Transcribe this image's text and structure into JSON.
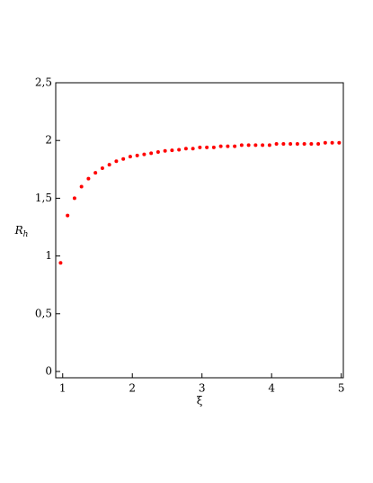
{
  "chart_data": {
    "type": "scatter",
    "xlabel": "ξ",
    "ylabel": {
      "base": "R",
      "sub": "h"
    },
    "color": "#ff0000",
    "xlim": [
      0.9,
      5.03
    ],
    "ylim": [
      0,
      2.5
    ],
    "xticks": [
      1,
      2,
      3,
      4,
      5
    ],
    "yticks": [
      {
        "value": 0,
        "label": "0"
      },
      {
        "value": 0.5,
        "label": "0,5"
      },
      {
        "value": 1,
        "label": "1"
      },
      {
        "value": 1.5,
        "label": "1,5"
      },
      {
        "value": 2,
        "label": "2"
      },
      {
        "value": 2.5,
        "label": "2,5"
      }
    ],
    "x": [
      0.97,
      1.07,
      1.17,
      1.27,
      1.37,
      1.47,
      1.57,
      1.67,
      1.77,
      1.87,
      1.97,
      2.07,
      2.17,
      2.27,
      2.37,
      2.47,
      2.57,
      2.67,
      2.77,
      2.87,
      2.97,
      3.07,
      3.17,
      3.27,
      3.37,
      3.47,
      3.57,
      3.67,
      3.77,
      3.87,
      3.97,
      4.07,
      4.17,
      4.27,
      4.37,
      4.47,
      4.57,
      4.67,
      4.77,
      4.87,
      4.97
    ],
    "values": [
      0.94,
      1.35,
      1.5,
      1.6,
      1.67,
      1.72,
      1.76,
      1.79,
      1.82,
      1.84,
      1.86,
      1.87,
      1.88,
      1.89,
      1.9,
      1.91,
      1.915,
      1.92,
      1.93,
      1.93,
      1.94,
      1.94,
      1.94,
      1.95,
      1.95,
      1.95,
      1.96,
      1.96,
      1.96,
      1.96,
      1.96,
      1.97,
      1.97,
      1.97,
      1.97,
      1.97,
      1.97,
      1.97,
      1.98,
      1.98,
      1.98
    ]
  }
}
